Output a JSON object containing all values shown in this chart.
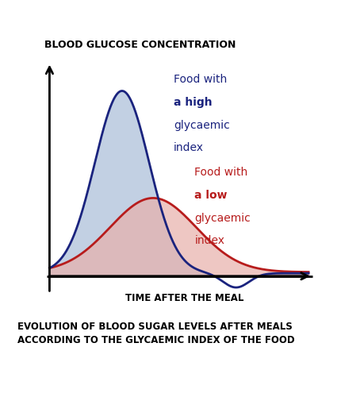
{
  "title_top": "BLOOD GLUCOSE CONCENTRATION",
  "xlabel": "TIME AFTER THE MEAL",
  "caption": "EVOLUTION OF BLOOD SUGAR LEVELS AFTER MEALS\nACCORDING TO THE GLYCAEMIC INDEX OF THE FOOD",
  "high_label_line1": "Food with",
  "high_label_line2": "a high",
  "high_label_line3": "glycaemic",
  "high_label_line4": "index",
  "low_label_line1": "Food with",
  "low_label_line2": "a low",
  "low_label_line3": "glycaemic",
  "low_label_line4": "index",
  "high_color": "#1a237e",
  "high_fill_color": "#a8bcd8",
  "low_color": "#b71c1c",
  "low_fill_color": "#e8b0aa",
  "background_color": "#ffffff",
  "high_fill_alpha": 0.7,
  "low_fill_alpha": 0.7
}
